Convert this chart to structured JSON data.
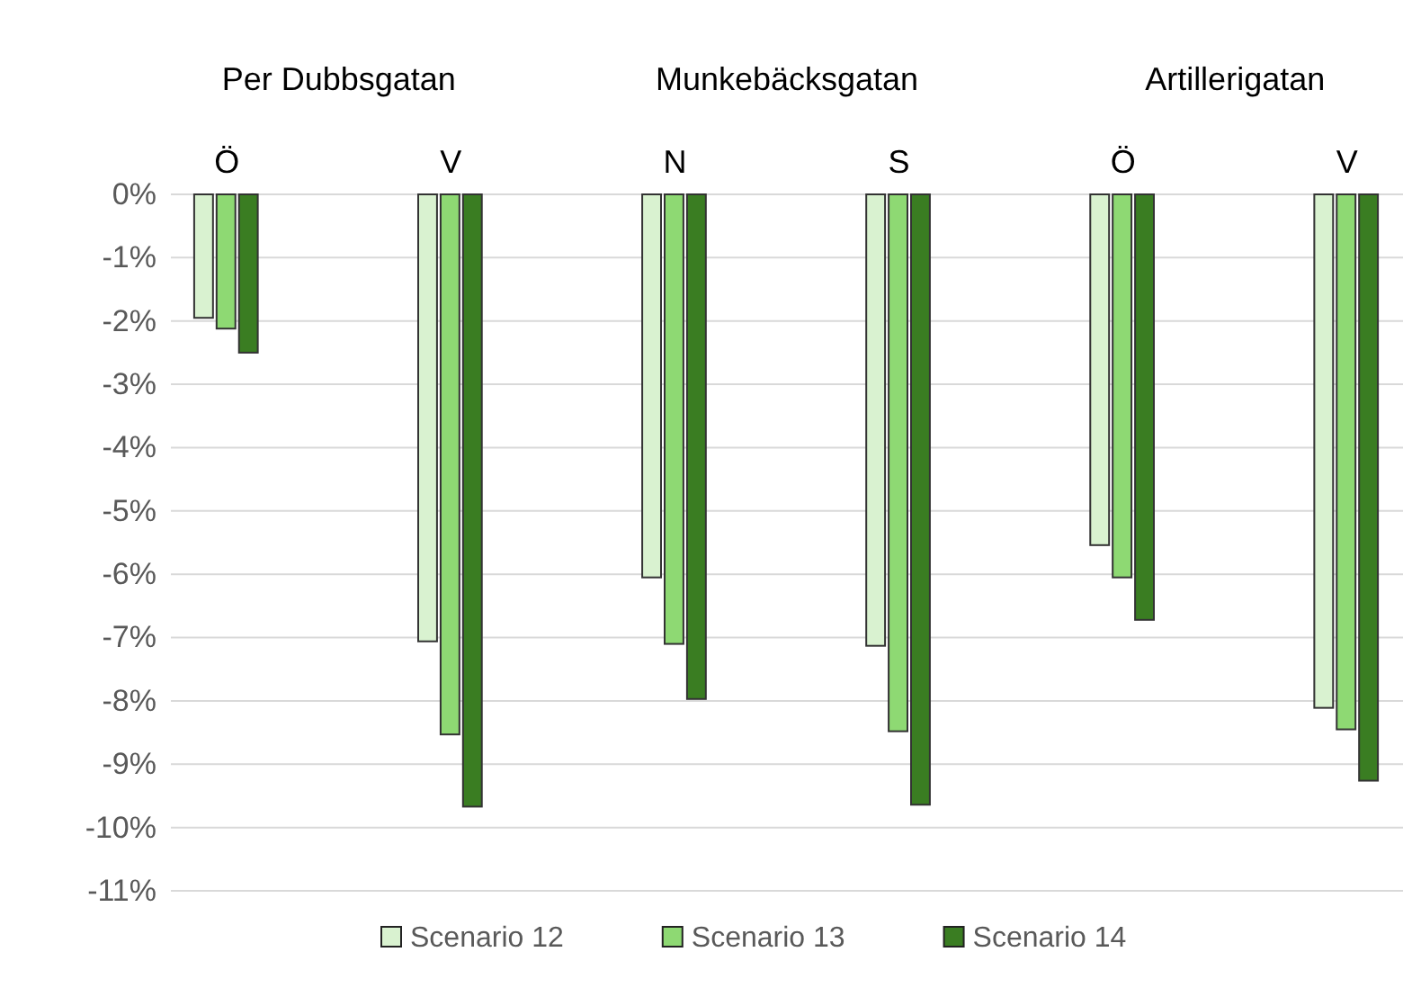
{
  "chart_data": {
    "type": "bar",
    "categories": [
      "Ö",
      "V",
      "N",
      "S",
      "Ö",
      "V"
    ],
    "annotations": [
      "Per Dubbsgatan",
      "Munkebäcksgatan",
      "Artillerigatan"
    ],
    "series": [
      {
        "name": "Scenario 12",
        "color": "#d9f2d0",
        "values": [
          -1.95,
          -7.06,
          -6.05,
          -7.13,
          -5.54,
          -8.11
        ]
      },
      {
        "name": "Scenario 13",
        "color": "#8ed973",
        "values": [
          -2.12,
          -8.53,
          -7.1,
          -8.48,
          -6.05,
          -8.45
        ]
      },
      {
        "name": "Scenario 14",
        "color": "#3a7d22",
        "values": [
          -2.5,
          -9.67,
          -7.97,
          -9.64,
          -6.72,
          -9.26
        ]
      }
    ],
    "ylim": [
      -11,
      0
    ],
    "yticks": [
      {
        "value": 0,
        "label": "0%"
      },
      {
        "value": -1,
        "label": "-1%"
      },
      {
        "value": -2,
        "label": "-2%"
      },
      {
        "value": -3,
        "label": "-3%"
      },
      {
        "value": -4,
        "label": "-4%"
      },
      {
        "value": -5,
        "label": "-5%"
      },
      {
        "value": -6,
        "label": "-6%"
      },
      {
        "value": -7,
        "label": "-7%"
      },
      {
        "value": -8,
        "label": "-8%"
      },
      {
        "value": -9,
        "label": "-9%"
      },
      {
        "value": -10,
        "label": "-10%"
      },
      {
        "value": -11,
        "label": "-11%"
      }
    ],
    "grid": "y",
    "legend": "bottom"
  }
}
